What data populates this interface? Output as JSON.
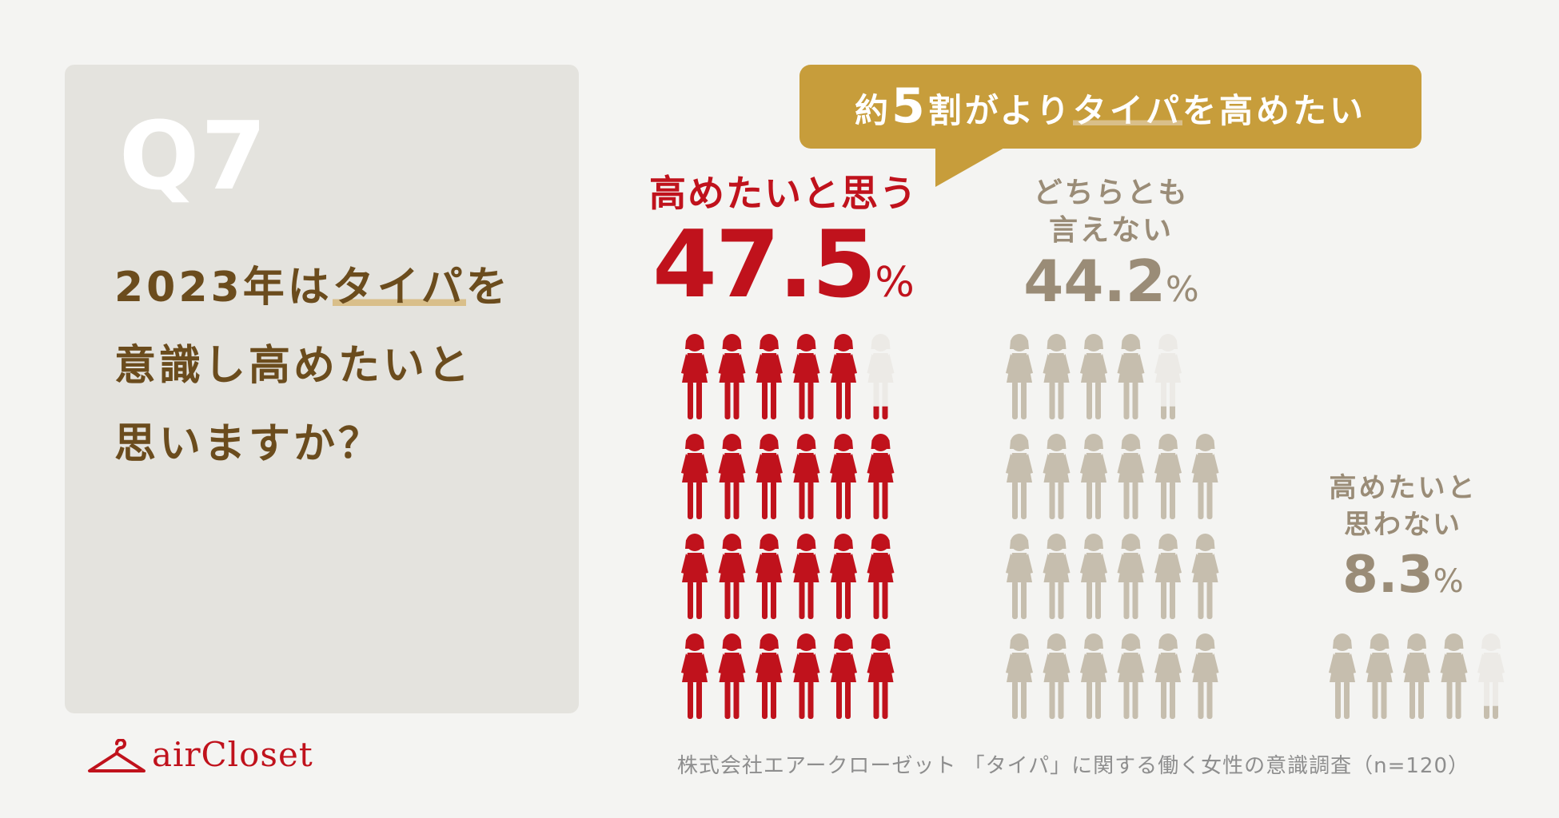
{
  "question": {
    "number": "Q7",
    "lines": [
      {
        "before": "2023年は",
        "highlight": "タイパ",
        "after": "を"
      },
      {
        "before": "意識し高めたいと",
        "highlight": "",
        "after": ""
      },
      {
        "before": "思いますか？",
        "highlight": "",
        "after": ""
      }
    ]
  },
  "callout": {
    "prefix": "約",
    "number": "5",
    "middle": "割がより",
    "highlight": "タイパ",
    "suffix": "を高めたい"
  },
  "colors": {
    "primary": "#c0121c",
    "secondary": "#c6beae",
    "empty": "#eceae6",
    "accent": "#c79d3b",
    "question_text": "#6b4c1d"
  },
  "chart_data": {
    "type": "pictogram",
    "icon": "woman-icon",
    "categories": [
      "高めたいと思う",
      "どちらとも言えない",
      "高めたいと思わない"
    ],
    "values": [
      47.5,
      44.2,
      8.3
    ],
    "unit": "%",
    "icon_value_percent": 2,
    "labels": [
      {
        "lines": [
          "高めたいと思う"
        ],
        "value": "47.5",
        "unit": "%"
      },
      {
        "lines": [
          "どちらとも",
          "言えない"
        ],
        "value": "44.2",
        "unit": "%"
      },
      {
        "lines": [
          "高めたいと",
          "思わない"
        ],
        "value": "8.3",
        "unit": "%"
      }
    ]
  },
  "logo": {
    "text": "airCloset"
  },
  "source": "株式会社エアークローゼット 「タイパ」に関する働く女性の意識調査（n=120）"
}
